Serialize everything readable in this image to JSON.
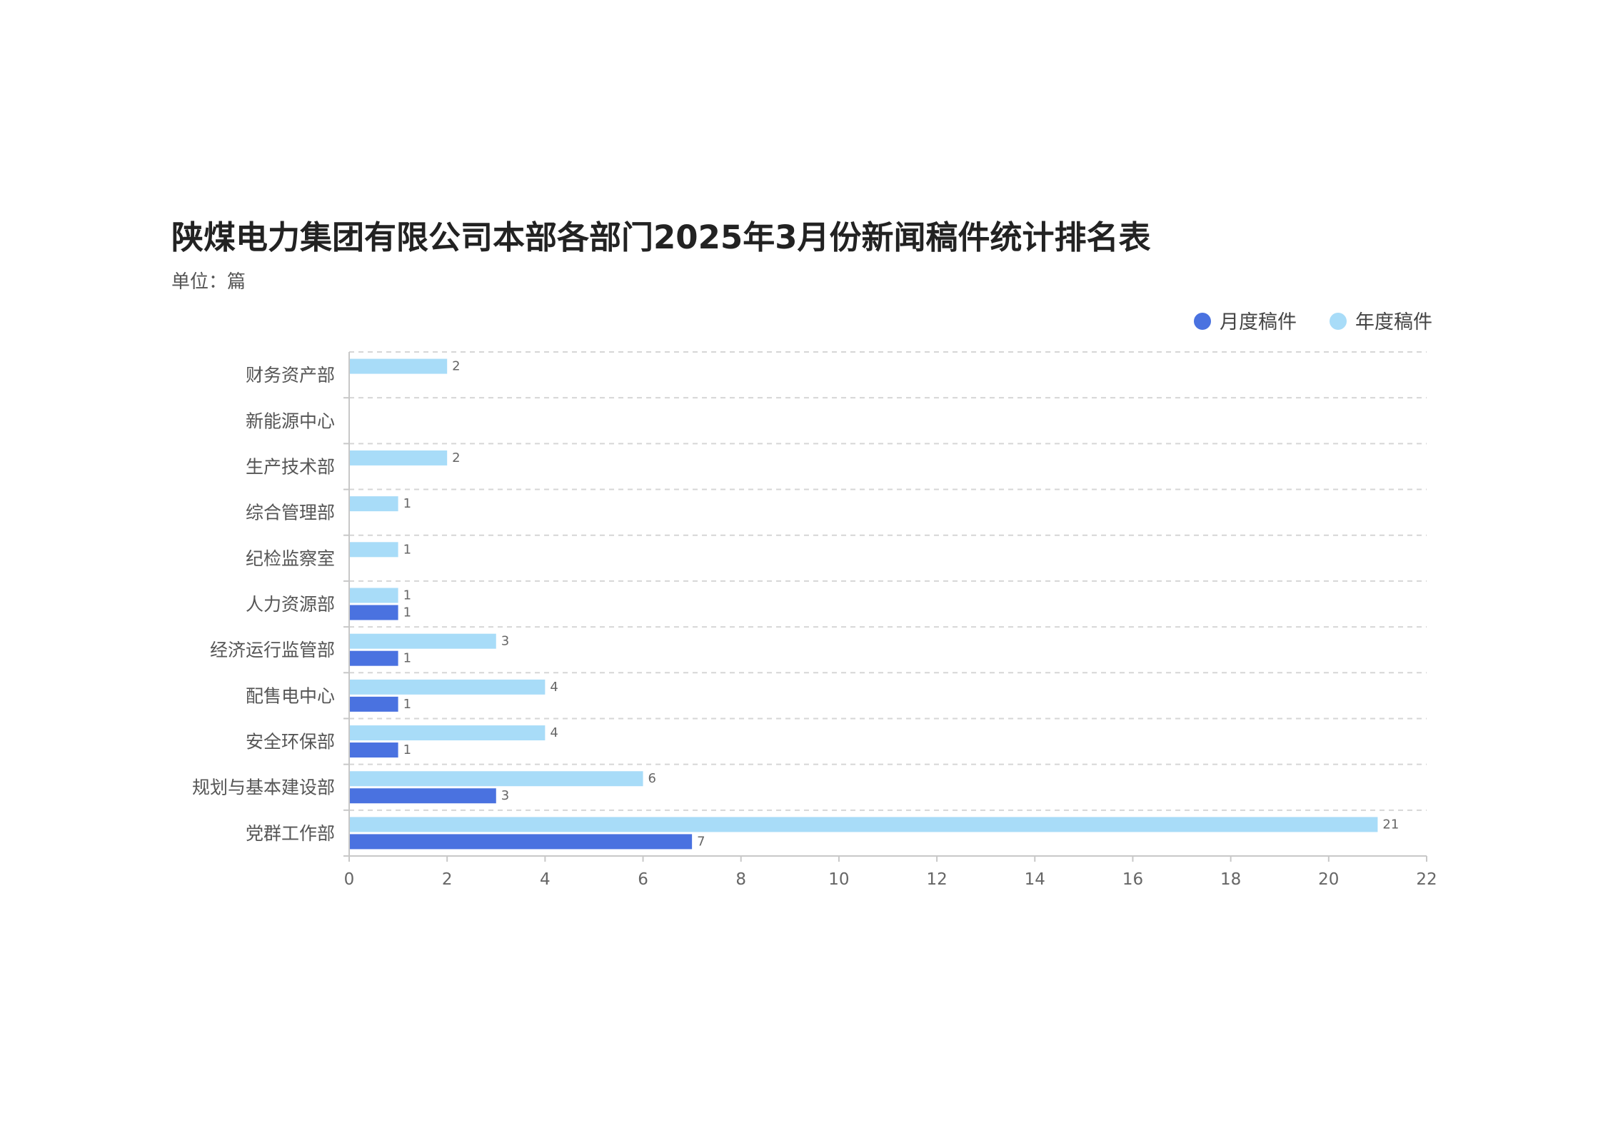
{
  "chart_data": {
    "type": "bar",
    "orientation": "horizontal",
    "title": "陕煤电力集团有限公司本部各部门2025年3月份新闻稿件统计排名表",
    "subtitle": "单位：篇",
    "categories": [
      "财务资产部",
      "新能源中心",
      "生产技术部",
      "综合管理部",
      "纪检监察室",
      "人力资源部",
      "经济运行监管部",
      "配售电中心",
      "安全环保部",
      "规划与基本建设部",
      "党群工作部"
    ],
    "series": [
      {
        "name": "月度稿件",
        "color": "#4a72e0",
        "values": [
          null,
          null,
          null,
          null,
          null,
          1,
          1,
          1,
          1,
          3,
          7
        ]
      },
      {
        "name": "年度稿件",
        "color": "#a8dcf8",
        "values": [
          2,
          null,
          2,
          1,
          1,
          1,
          3,
          4,
          4,
          6,
          21
        ]
      }
    ],
    "xlim": [
      0,
      22
    ],
    "xticks": [
      0,
      2,
      4,
      6,
      8,
      10,
      12,
      14,
      16,
      18,
      20,
      22
    ],
    "grid": "horizontal dashed",
    "legend": "top-right",
    "data_labels": true
  }
}
